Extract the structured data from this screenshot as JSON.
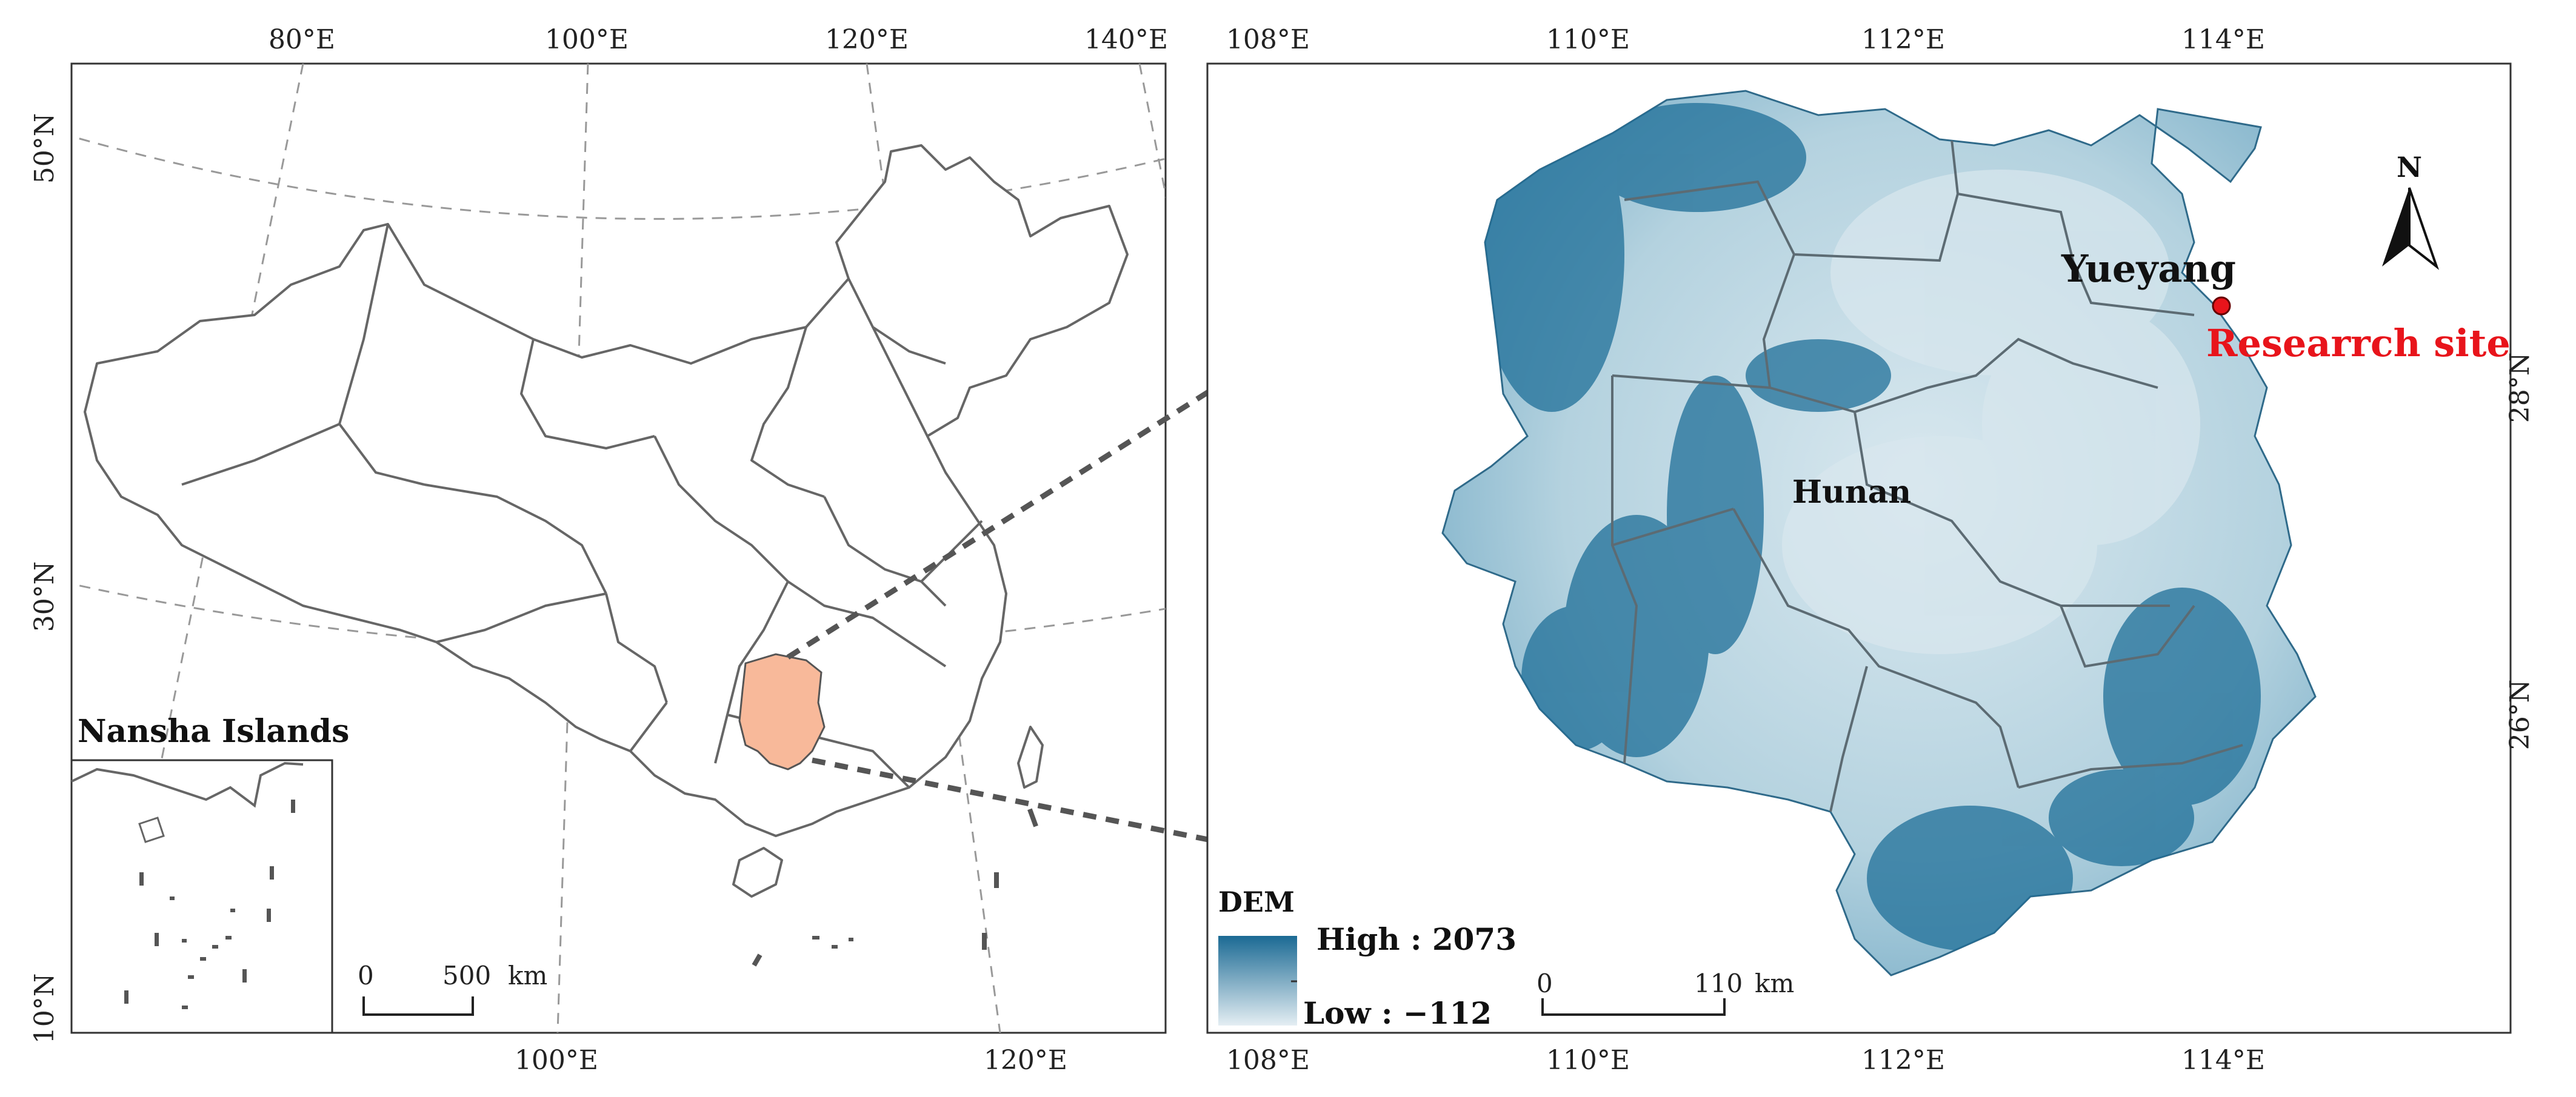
{
  "left_map": {
    "top_ticks": [
      "80°E",
      "100°E",
      "120°E",
      "140°E"
    ],
    "bottom_ticks": [
      "100°E",
      "120°E"
    ],
    "left_ticks": [
      "50°N",
      "30°N",
      "10°N"
    ],
    "inset_title": "Nansha Islands",
    "scale_zero": "0",
    "scale_value": "500",
    "scale_unit": "km",
    "highlight_color": "#f8b99a"
  },
  "right_map": {
    "top_ticks": [
      "108°E",
      "110°E",
      "112°E",
      "114°E"
    ],
    "bottom_ticks": [
      "108°E",
      "110°E",
      "112°E",
      "114°E"
    ],
    "right_ticks": [
      "28°N",
      "26°N"
    ],
    "province_label": "Hunan",
    "city_label": "Yueyang",
    "site_label": "Researrch site",
    "site_color": "#e8141b",
    "north_label": "N",
    "legend": {
      "title": "DEM",
      "high_label": "High : 2073",
      "low_label": "Low : −112",
      "high_color": "#1b6a94",
      "low_color": "#e4eef3"
    },
    "scale_zero": "0",
    "scale_value": "110",
    "scale_unit": "km"
  }
}
